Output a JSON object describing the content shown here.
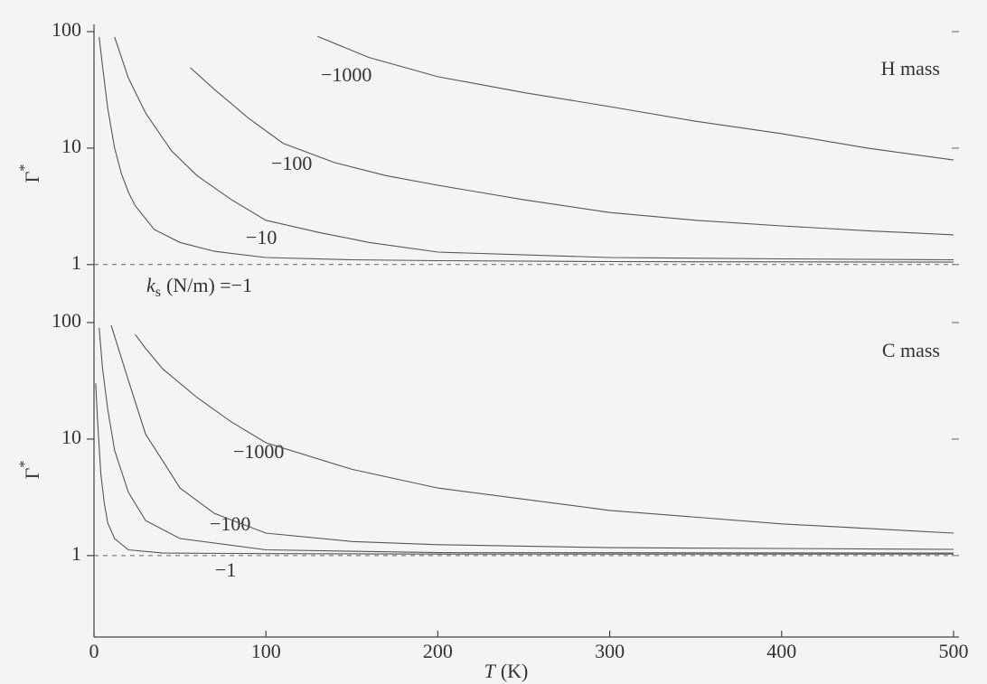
{
  "chart_data": [
    {
      "type": "line",
      "log_y": true,
      "annotation": "H mass",
      "xlim": [
        0,
        500
      ],
      "ylim": [
        0.36,
        100
      ],
      "yticks": [
        1,
        10,
        100
      ],
      "reference_line": 1,
      "color": "#555555",
      "ks_label": {
        "symbol": "k",
        "subscript": "s",
        "unit": "(N/m) ="
      },
      "series": [
        {
          "name": "−1",
          "x": [
            3,
            5,
            8,
            12,
            16,
            20,
            24,
            35,
            50,
            70,
            100,
            150,
            200,
            300,
            500
          ],
          "values": [
            90,
            50,
            22,
            10,
            6,
            4.2,
            3.2,
            2.0,
            1.55,
            1.3,
            1.15,
            1.1,
            1.08,
            1.06,
            1.05
          ]
        },
        {
          "name": "−10",
          "x": [
            12,
            20,
            30,
            45,
            60,
            80,
            100,
            130,
            160,
            200,
            300,
            400,
            500
          ],
          "values": [
            90,
            40,
            20,
            9.5,
            5.8,
            3.6,
            2.4,
            1.9,
            1.55,
            1.28,
            1.15,
            1.12,
            1.1
          ]
        },
        {
          "name": "−100",
          "x": [
            56,
            70,
            90,
            110,
            140,
            170,
            200,
            250,
            300,
            350,
            400,
            450,
            500
          ],
          "values": [
            49,
            32,
            18,
            11,
            7.5,
            5.8,
            4.8,
            3.6,
            2.8,
            2.4,
            2.15,
            1.95,
            1.8
          ]
        },
        {
          "name": "−1000",
          "x": [
            130,
            160,
            200,
            250,
            300,
            350,
            400,
            450,
            500
          ],
          "values": [
            91,
            60,
            41,
            30,
            22.7,
            17,
            13.3,
            10,
            7.9
          ]
        }
      ]
    },
    {
      "type": "line",
      "log_y": true,
      "annotation": "C mass",
      "xlim": [
        0,
        500
      ],
      "xticks": [
        0,
        100,
        200,
        300,
        400,
        500
      ],
      "ylim": [
        0.2,
        100
      ],
      "yticks": [
        1,
        10,
        100
      ],
      "reference_line": 1,
      "color": "#555555",
      "xlabel": {
        "symbol": "T",
        "unit": "(K)"
      },
      "ylabel": {
        "symbol": "Γ",
        "superscript": "*"
      },
      "series": [
        {
          "name": "−1",
          "x": [
            1,
            2,
            4,
            6,
            8,
            12,
            20,
            40,
            100,
            200,
            300,
            400,
            500
          ],
          "values": [
            30,
            15,
            5,
            2.8,
            1.9,
            1.4,
            1.12,
            1.05,
            1.04,
            1.03,
            1.03,
            1.03,
            1.03
          ]
        },
        {
          "x": [
            3,
            5,
            8,
            12,
            20,
            30,
            50,
            100,
            200,
            500
          ],
          "values": [
            90,
            40,
            18,
            8,
            3.5,
            2,
            1.4,
            1.12,
            1.06,
            1.05
          ]
        },
        {
          "name": "−100",
          "x": [
            10,
            15,
            20,
            30,
            40,
            50,
            70,
            100,
            150,
            200,
            300,
            400,
            500
          ],
          "values": [
            95,
            55,
            32,
            11,
            6.5,
            3.8,
            2.3,
            1.56,
            1.32,
            1.24,
            1.17,
            1.15,
            1.13
          ]
        },
        {
          "name": "−1000",
          "x": [
            24,
            30,
            40,
            60,
            80,
            100,
            150,
            200,
            300,
            400,
            500
          ],
          "values": [
            79,
            60,
            40,
            22.7,
            14,
            9.3,
            5.5,
            3.8,
            2.44,
            1.87,
            1.56
          ]
        }
      ]
    }
  ]
}
